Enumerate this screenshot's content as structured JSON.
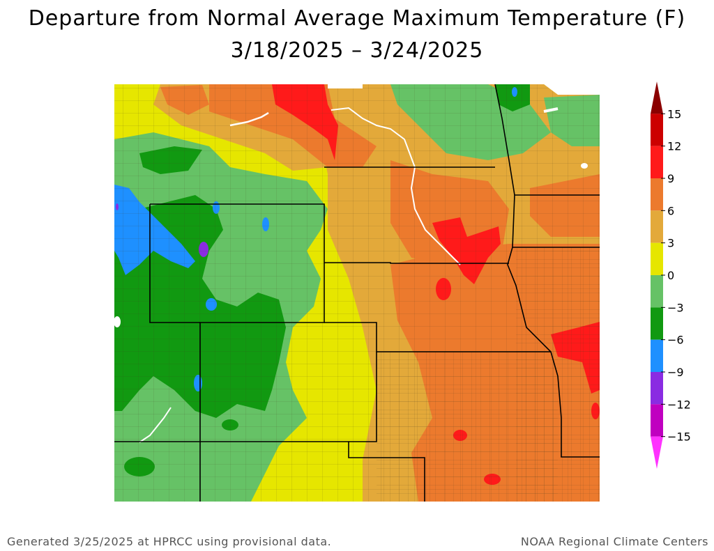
{
  "title": "Departure from Normal Average Maximum Temperature (F)",
  "date_range": "3/18/2025 – 3/24/2025",
  "footer_left": "Generated 3/25/2025 at HPRCC using provisional data.",
  "footer_right": "NOAA Regional Climate Centers",
  "legend": {
    "ticks": [
      "15",
      "12",
      "9",
      "6",
      "3",
      "0",
      "−3",
      "−6",
      "−9",
      "−12",
      "−15"
    ],
    "bins": [
      {
        "from": 15,
        "to": 18,
        "color": "#8b0000"
      },
      {
        "from": 12,
        "to": 15,
        "color": "#cc0000"
      },
      {
        "from": 9,
        "to": 12,
        "color": "#ff1a1a"
      },
      {
        "from": 6,
        "to": 9,
        "color": "#ec7a2d"
      },
      {
        "from": 3,
        "to": 6,
        "color": "#e3a93a"
      },
      {
        "from": 0,
        "to": 3,
        "color": "#e6e600"
      },
      {
        "from": -3,
        "to": 0,
        "color": "#66c266"
      },
      {
        "from": -6,
        "to": -3,
        "color": "#119911"
      },
      {
        "from": -9,
        "to": -6,
        "color": "#1e90ff"
      },
      {
        "from": -12,
        "to": -9,
        "color": "#8a2be2"
      },
      {
        "from": -15,
        "to": -12,
        "color": "#c000c0"
      },
      {
        "from": -18,
        "to": -15,
        "color": "#ff33ff"
      }
    ]
  },
  "colors": {
    "very_warm": "#ff1a1a",
    "warm": "#ec7a2d",
    "mild_warm": "#e3a93a",
    "near_normal": "#e6e600",
    "slightly_cool": "#66c266",
    "cool": "#119911",
    "cold": "#1e90ff",
    "very_cold": "#8a2be2"
  }
}
